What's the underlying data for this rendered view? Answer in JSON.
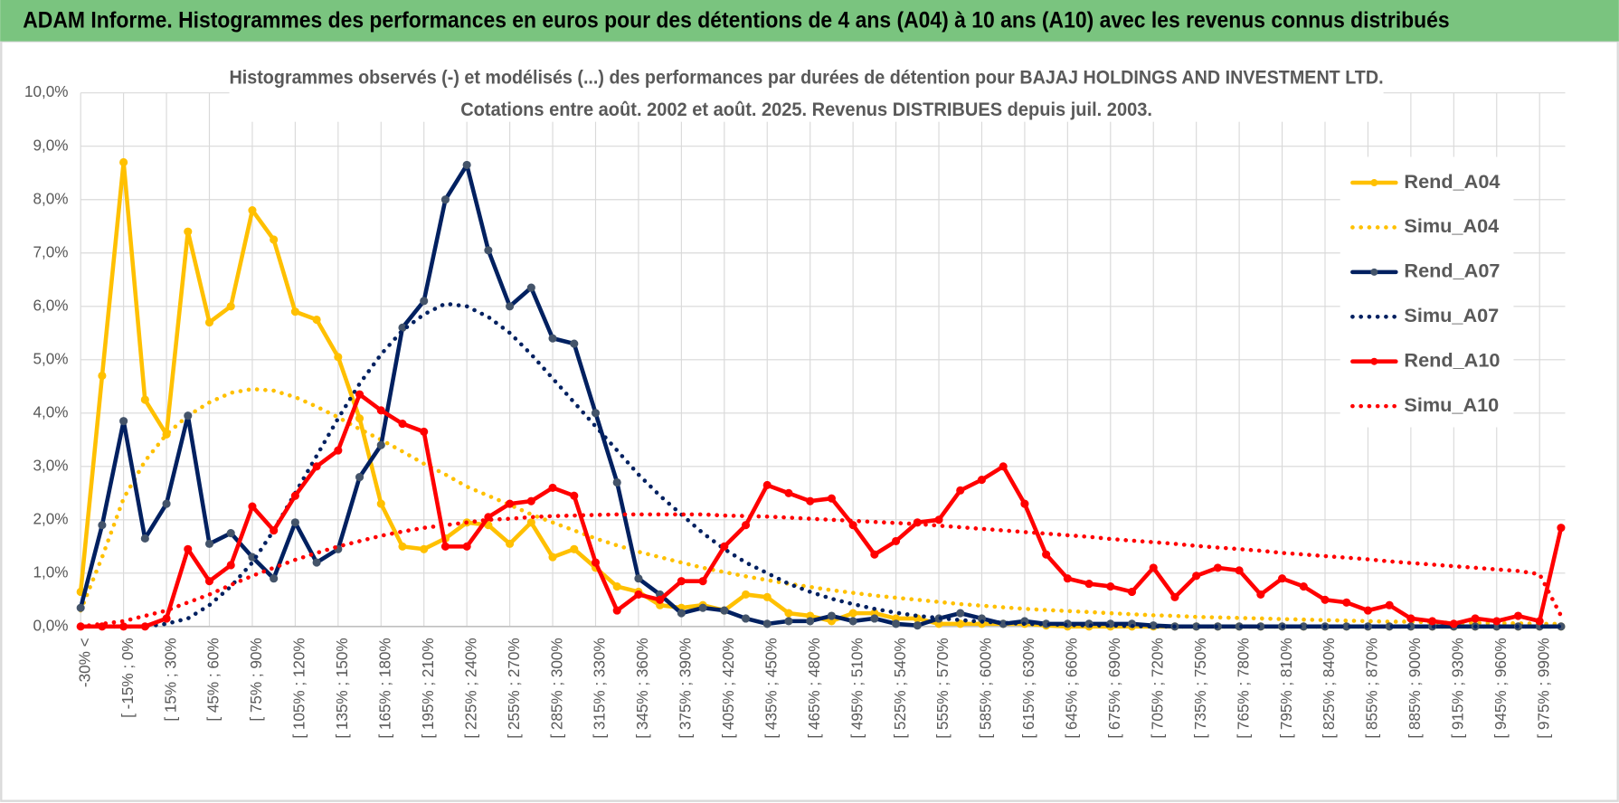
{
  "chart_data": {
    "type": "line",
    "header": "ADAM Informe. Histogrammes des performances en euros pour des détentions de 4 ans (A04) à 10 ans (A10) avec les revenus connus distribués",
    "title": "Histogrammes observés (-) et modélisés (...) des performances par durées de détention pour BAJAJ HOLDINGS AND INVESTMENT LTD.",
    "subtitle": "Cotations entre août. 2002 et août. 2025. Revenus DISTRIBUES depuis juil. 2003.",
    "categories": [
      "-30% <",
      null,
      "[ -15% ; 0%",
      null,
      "[ 15% ; 30%",
      null,
      "[ 45% ; 60%",
      null,
      "[ 75% ; 90%",
      null,
      "[ 105% ; 120%",
      null,
      "[ 135% ; 150%",
      null,
      "[ 165% ; 180%",
      null,
      "[ 195% ; 210%",
      null,
      "[ 225% ; 240%",
      null,
      "[ 255% ; 270%",
      null,
      "[ 285% ; 300%",
      null,
      "[ 315% ; 330%",
      null,
      "[ 345% ; 360%",
      null,
      "[ 375% ; 390%",
      null,
      "[ 405% ; 420%",
      null,
      "[ 435% ; 450%",
      null,
      "[ 465% ; 480%",
      null,
      "[ 495% ; 510%",
      null,
      "[ 525% ; 540%",
      null,
      "[ 555% ; 570%",
      null,
      "[ 585% ; 600%",
      null,
      "[ 615% ; 630%",
      null,
      "[ 645% ; 660%",
      null,
      "[ 675% ; 690%",
      null,
      "[ 705% ; 720%",
      null,
      "[ 735% ; 750%",
      null,
      "[ 765% ; 780%",
      null,
      "[ 795% ; 810%",
      null,
      "[ 825% ; 840%",
      null,
      "[ 855% ; 870%",
      null,
      "[ 885% ; 900%",
      null,
      "[ 915% ; 930%",
      null,
      "[ 945% ; 960%",
      null,
      "[ 975% ; 990%",
      null
    ],
    "ylim": [
      0,
      10
    ],
    "yticks": [
      {
        "value": 0,
        "label": "0,0%"
      },
      {
        "value": 1,
        "label": "1,0%"
      },
      {
        "value": 2,
        "label": "2,0%"
      },
      {
        "value": 3,
        "label": "3,0%"
      },
      {
        "value": 4,
        "label": "4,0%"
      },
      {
        "value": 5,
        "label": "5,0%"
      },
      {
        "value": 6,
        "label": "6,0%"
      },
      {
        "value": 7,
        "label": "7,0%"
      },
      {
        "value": 8,
        "label": "8,0%"
      },
      {
        "value": 9,
        "label": "9,0%"
      },
      {
        "value": 10,
        "label": "10,0%"
      }
    ],
    "grid": true,
    "legend": "right",
    "series": [
      {
        "name": "Rend_A04",
        "color": "#FFC000",
        "marker_color": "#FFC000",
        "style": "solid",
        "markers": true,
        "values": [
          0.65,
          4.7,
          8.7,
          4.25,
          3.6,
          7.4,
          5.7,
          6.0,
          7.8,
          7.25,
          5.9,
          5.75,
          5.05,
          3.9,
          2.3,
          1.5,
          1.45,
          1.65,
          1.95,
          1.9,
          1.55,
          1.95,
          1.3,
          1.45,
          1.1,
          0.75,
          0.65,
          0.4,
          0.35,
          0.4,
          0.3,
          0.6,
          0.55,
          0.25,
          0.2,
          0.1,
          0.25,
          0.25,
          0.15,
          0.15,
          0.05,
          0.05,
          0.05,
          0.05,
          0.05,
          0.02,
          0,
          0,
          0,
          0,
          0,
          0,
          0,
          0,
          0,
          0,
          0,
          0,
          0,
          0,
          0,
          0,
          0,
          0,
          0,
          0,
          0,
          0,
          0,
          0
        ]
      },
      {
        "name": "Simu_A04",
        "color": "#FFC000",
        "style": "dotted",
        "markers": false,
        "values": [
          0.3,
          1.3,
          2.4,
          3.1,
          3.6,
          3.95,
          4.2,
          4.38,
          4.45,
          4.42,
          4.3,
          4.12,
          3.92,
          3.7,
          3.5,
          3.28,
          3.05,
          2.85,
          2.62,
          2.45,
          2.28,
          2.1,
          1.95,
          1.8,
          1.65,
          1.52,
          1.4,
          1.3,
          1.2,
          1.1,
          1.02,
          0.94,
          0.87,
          0.8,
          0.74,
          0.68,
          0.63,
          0.58,
          0.54,
          0.5,
          0.46,
          0.42,
          0.39,
          0.36,
          0.33,
          0.31,
          0.29,
          0.27,
          0.25,
          0.23,
          0.21,
          0.2,
          0.18,
          0.17,
          0.16,
          0.15,
          0.14,
          0.13,
          0.12,
          0.11,
          0.1,
          0.09,
          0.09,
          0.08,
          0.07,
          0.07,
          0.06,
          0.06,
          0.05,
          0.05
        ]
      },
      {
        "name": "Rend_A07",
        "color": "#002060",
        "marker_color": "#44546A",
        "style": "solid",
        "markers": true,
        "values": [
          0.35,
          1.9,
          3.85,
          1.65,
          2.3,
          3.95,
          1.55,
          1.75,
          1.3,
          0.9,
          1.95,
          1.2,
          1.45,
          2.8,
          3.4,
          5.6,
          6.1,
          8.0,
          8.65,
          7.05,
          6.0,
          6.35,
          5.4,
          5.3,
          4.0,
          2.7,
          0.9,
          0.6,
          0.25,
          0.35,
          0.3,
          0.15,
          0.05,
          0.1,
          0.1,
          0.2,
          0.1,
          0.15,
          0.05,
          0.02,
          0.15,
          0.25,
          0.15,
          0.05,
          0.1,
          0.05,
          0.05,
          0.05,
          0.05,
          0.05,
          0.02,
          0,
          0,
          0,
          0,
          0,
          0,
          0,
          0,
          0,
          0,
          0,
          0,
          0,
          0,
          0,
          0,
          0,
          0,
          0
        ]
      },
      {
        "name": "Simu_A07",
        "color": "#002060",
        "style": "dotted",
        "markers": false,
        "values": [
          0,
          0,
          0,
          0,
          0.05,
          0.15,
          0.4,
          0.75,
          1.2,
          1.8,
          2.5,
          3.2,
          3.9,
          4.55,
          5.1,
          5.55,
          5.85,
          6.05,
          6.0,
          5.8,
          5.5,
          5.1,
          4.65,
          4.2,
          3.75,
          3.3,
          2.85,
          2.45,
          2.1,
          1.75,
          1.45,
          1.2,
          1.0,
          0.8,
          0.65,
          0.52,
          0.42,
          0.33,
          0.26,
          0.2,
          0.16,
          0.12,
          0.09,
          0.07,
          0.05,
          0.04,
          0.03,
          0.02,
          0.02,
          0.01,
          0,
          0,
          0,
          0,
          0,
          0,
          0,
          0,
          0,
          0,
          0,
          0,
          0,
          0,
          0,
          0,
          0,
          0,
          0,
          0
        ]
      },
      {
        "name": "Rend_A10",
        "color": "#FF0000",
        "marker_color": "#FF0000",
        "style": "solid",
        "markers": true,
        "values": [
          0,
          0,
          0,
          0,
          0.15,
          1.45,
          0.85,
          1.15,
          2.25,
          1.8,
          2.45,
          3.0,
          3.3,
          4.35,
          4.05,
          3.8,
          3.65,
          1.5,
          1.5,
          2.05,
          2.3,
          2.35,
          2.6,
          2.45,
          1.2,
          0.3,
          0.6,
          0.5,
          0.85,
          0.85,
          1.5,
          1.9,
          2.65,
          2.5,
          2.35,
          2.4,
          1.9,
          1.35,
          1.6,
          1.95,
          2.0,
          2.55,
          2.75,
          3.0,
          2.3,
          1.35,
          0.9,
          0.8,
          0.75,
          0.65,
          1.1,
          0.55,
          0.95,
          1.1,
          1.05,
          0.6,
          0.9,
          0.75,
          0.5,
          0.45,
          0.3,
          0.4,
          0.15,
          0.1,
          0.05,
          0.15,
          0.1,
          0.2,
          0.1,
          1.85
        ]
      },
      {
        "name": "Simu_A10",
        "color": "#FF0000",
        "style": "dotted",
        "markers": false,
        "values": [
          0,
          0.05,
          0.1,
          0.2,
          0.3,
          0.45,
          0.6,
          0.78,
          0.95,
          1.1,
          1.25,
          1.38,
          1.5,
          1.6,
          1.7,
          1.78,
          1.85,
          1.9,
          1.95,
          2.0,
          2.02,
          2.05,
          2.07,
          2.08,
          2.09,
          2.1,
          2.1,
          2.1,
          2.1,
          2.1,
          2.08,
          2.07,
          2.06,
          2.04,
          2.02,
          2.0,
          1.98,
          1.96,
          1.94,
          1.92,
          1.89,
          1.86,
          1.83,
          1.8,
          1.77,
          1.74,
          1.71,
          1.68,
          1.64,
          1.61,
          1.58,
          1.55,
          1.51,
          1.48,
          1.45,
          1.42,
          1.38,
          1.35,
          1.32,
          1.29,
          1.26,
          1.22,
          1.19,
          1.16,
          1.13,
          1.1,
          1.07,
          1.04,
          0.98,
          0.2
        ]
      }
    ]
  }
}
